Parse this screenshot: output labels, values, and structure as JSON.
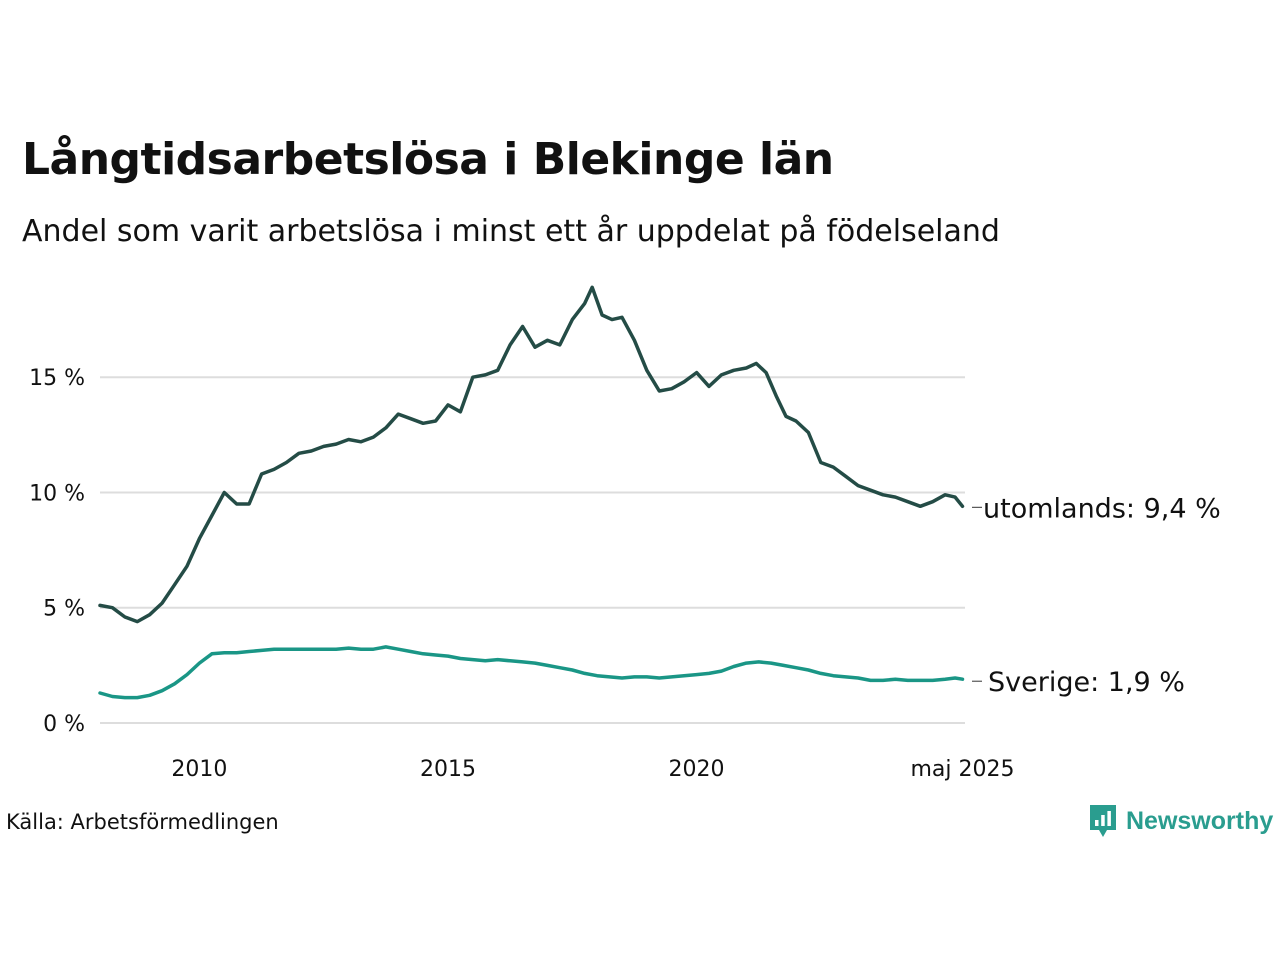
{
  "title": "Långtidsarbetslösa i Blekinge län",
  "subtitle": "Andel som varit arbetslösa i minst ett år uppdelat på födelseland",
  "source": "Källa: Arbetsförmedlingen",
  "brand": "Newsworthy",
  "colors": {
    "utomlands": "#244c46",
    "sverige": "#1a9686",
    "grid": "#dddddd",
    "brand": "#2a9d8f"
  },
  "chart_data": {
    "type": "line",
    "grid": true,
    "ylim": [
      0,
      19
    ],
    "yticks": [
      0,
      5,
      10,
      15
    ],
    "ytick_labels": [
      "0 %",
      "5 %",
      "10 %",
      "15 %"
    ],
    "xlim": [
      2008.0,
      2025.4
    ],
    "xticks": [
      2010,
      2015,
      2020,
      2025.35
    ],
    "xtick_labels": [
      "2010",
      "2015",
      "2020",
      "maj 2025"
    ],
    "series": [
      {
        "key": "utomlands",
        "end_label": "utomlands: 9,4 %",
        "x": [
          2008.0,
          2008.25,
          2008.5,
          2008.75,
          2009.0,
          2009.25,
          2009.5,
          2009.75,
          2010.0,
          2010.25,
          2010.5,
          2010.75,
          2011.0,
          2011.25,
          2011.5,
          2011.75,
          2012.0,
          2012.25,
          2012.5,
          2012.75,
          2013.0,
          2013.25,
          2013.5,
          2013.75,
          2014.0,
          2014.25,
          2014.5,
          2014.75,
          2015.0,
          2015.25,
          2015.5,
          2015.75,
          2016.0,
          2016.25,
          2016.5,
          2016.75,
          2017.0,
          2017.25,
          2017.5,
          2017.75,
          2017.9,
          2018.1,
          2018.3,
          2018.5,
          2018.75,
          2019.0,
          2019.25,
          2019.5,
          2019.75,
          2020.0,
          2020.25,
          2020.5,
          2020.75,
          2021.0,
          2021.2,
          2021.4,
          2021.6,
          2021.8,
          2022.0,
          2022.25,
          2022.5,
          2022.75,
          2023.0,
          2023.25,
          2023.5,
          2023.75,
          2024.0,
          2024.25,
          2024.5,
          2024.75,
          2025.0,
          2025.2,
          2025.35
        ],
        "y": [
          5.1,
          5.0,
          4.6,
          4.4,
          4.7,
          5.2,
          6.0,
          6.8,
          8.0,
          9.0,
          10.0,
          9.5,
          9.5,
          10.8,
          11.0,
          11.3,
          11.7,
          11.8,
          12.0,
          12.1,
          12.3,
          12.2,
          12.4,
          12.8,
          13.4,
          13.2,
          13.0,
          13.1,
          13.8,
          13.5,
          15.0,
          15.1,
          15.3,
          16.4,
          17.2,
          16.3,
          16.6,
          16.4,
          17.5,
          18.2,
          18.9,
          17.7,
          17.5,
          17.6,
          16.6,
          15.3,
          14.4,
          14.5,
          14.8,
          15.2,
          14.6,
          15.1,
          15.3,
          15.4,
          15.6,
          15.2,
          14.2,
          13.3,
          13.1,
          12.6,
          11.3,
          11.1,
          10.7,
          10.3,
          10.1,
          9.9,
          9.8,
          9.6,
          9.4,
          9.6,
          9.9,
          9.8,
          9.4
        ]
      },
      {
        "key": "sverige",
        "end_label": "Sverige: 1,9 %",
        "x": [
          2008.0,
          2008.25,
          2008.5,
          2008.75,
          2009.0,
          2009.25,
          2009.5,
          2009.75,
          2010.0,
          2010.25,
          2010.5,
          2010.75,
          2011.0,
          2011.25,
          2011.5,
          2011.75,
          2012.0,
          2012.25,
          2012.5,
          2012.75,
          2013.0,
          2013.25,
          2013.5,
          2013.75,
          2014.0,
          2014.25,
          2014.5,
          2014.75,
          2015.0,
          2015.25,
          2015.5,
          2015.75,
          2016.0,
          2016.25,
          2016.5,
          2016.75,
          2017.0,
          2017.25,
          2017.5,
          2017.75,
          2018.0,
          2018.25,
          2018.5,
          2018.75,
          2019.0,
          2019.25,
          2019.5,
          2019.75,
          2020.0,
          2020.25,
          2020.5,
          2020.75,
          2021.0,
          2021.25,
          2021.5,
          2021.75,
          2022.0,
          2022.25,
          2022.5,
          2022.75,
          2023.0,
          2023.25,
          2023.5,
          2023.75,
          2024.0,
          2024.25,
          2024.5,
          2024.75,
          2025.0,
          2025.2,
          2025.35
        ],
        "y": [
          1.3,
          1.15,
          1.1,
          1.1,
          1.2,
          1.4,
          1.7,
          2.1,
          2.6,
          3.0,
          3.05,
          3.05,
          3.1,
          3.15,
          3.2,
          3.2,
          3.2,
          3.2,
          3.2,
          3.2,
          3.25,
          3.2,
          3.2,
          3.3,
          3.2,
          3.1,
          3.0,
          2.95,
          2.9,
          2.8,
          2.75,
          2.7,
          2.75,
          2.7,
          2.65,
          2.6,
          2.5,
          2.4,
          2.3,
          2.15,
          2.05,
          2.0,
          1.95,
          2.0,
          2.0,
          1.95,
          2.0,
          2.05,
          2.1,
          2.15,
          2.25,
          2.45,
          2.6,
          2.65,
          2.6,
          2.5,
          2.4,
          2.3,
          2.15,
          2.05,
          2.0,
          1.95,
          1.85,
          1.85,
          1.9,
          1.85,
          1.85,
          1.85,
          1.9,
          1.95,
          1.9
        ]
      }
    ]
  }
}
